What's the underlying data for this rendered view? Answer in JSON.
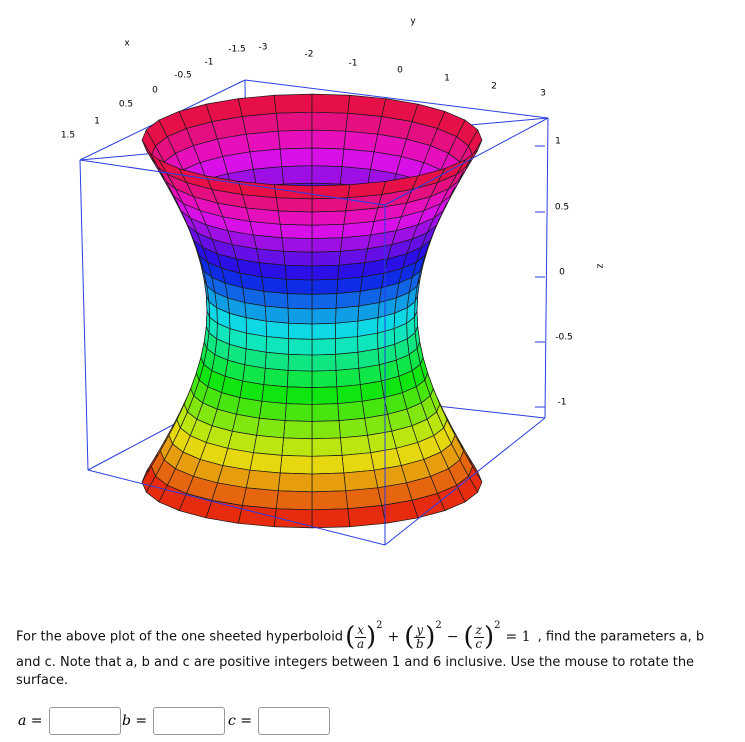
{
  "plot": {
    "x_label": "x",
    "y_label": "y",
    "z_label": "z",
    "x_ticks": [
      "1.5",
      "1",
      "0.5",
      "0",
      "-0.5",
      "-1",
      "-1.5"
    ],
    "y_ticks": [
      "-3",
      "-2",
      "-1",
      "0",
      "1",
      "2",
      "3"
    ],
    "z_ticks": [
      "1",
      "0.5",
      "0",
      "-0.5",
      "-1"
    ]
  },
  "question": {
    "before": "For the above plot of the one sheeted hyperboloid",
    "equation": {
      "terms": [
        {
          "num": "x",
          "den": "a",
          "exp": "2"
        },
        {
          "num": "y",
          "den": "b",
          "exp": "2"
        },
        {
          "num": "z",
          "den": "c",
          "exp": "2"
        }
      ],
      "ops": [
        "+",
        "−"
      ],
      "rhs": "= 1"
    },
    "after": ", find the parameters a, b",
    "line2": "and c. Note that a, b and c are positive integers between 1 and 6 inclusive. Use the mouse to rotate the",
    "line3": "surface."
  },
  "answers": [
    {
      "label": "a ="
    },
    {
      "label": "b ="
    },
    {
      "label": "c ="
    }
  ]
}
